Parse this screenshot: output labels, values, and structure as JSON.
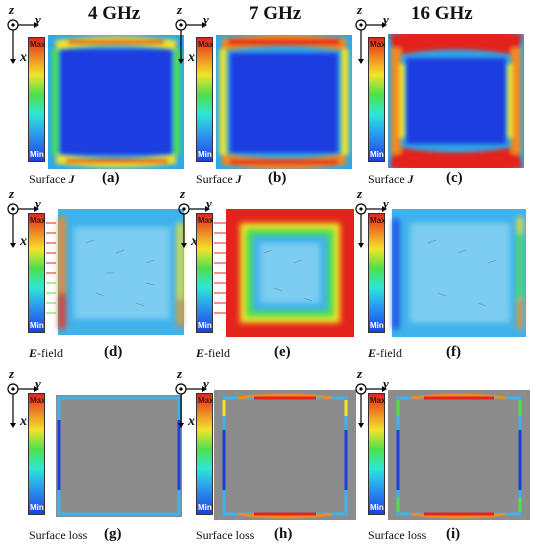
{
  "frequencies": [
    "4 GHz",
    "7 GHz",
    "16 GHz"
  ],
  "axes": {
    "z": "z",
    "y": "y",
    "x": "x"
  },
  "colorbar": {
    "max": "Max",
    "min": "Min",
    "colors": [
      "#e3241c",
      "#f08a24",
      "#f2e32c",
      "#4ee04a",
      "#2ee7d6",
      "#2b9bf0",
      "#1e3fe0"
    ]
  },
  "rows": [
    {
      "quantity_symbol": "J",
      "quantity_prefix": "Surface ",
      "quantity_suffix": ""
    },
    {
      "quantity_symbol": "E",
      "quantity_prefix": "",
      "quantity_suffix": "-field"
    },
    {
      "quantity_symbol": "",
      "quantity_prefix": "Surface loss",
      "quantity_suffix": ""
    }
  ],
  "panel_labels": [
    "(a)",
    "(b)",
    "(c)",
    "(d)",
    "(e)",
    "(f)",
    "(g)",
    "(h)",
    "(i)"
  ],
  "field_colors": {
    "bg_blue": "#1e4fd8",
    "edge_red": "#e82016",
    "loss_grey": "#8c8c8c"
  }
}
